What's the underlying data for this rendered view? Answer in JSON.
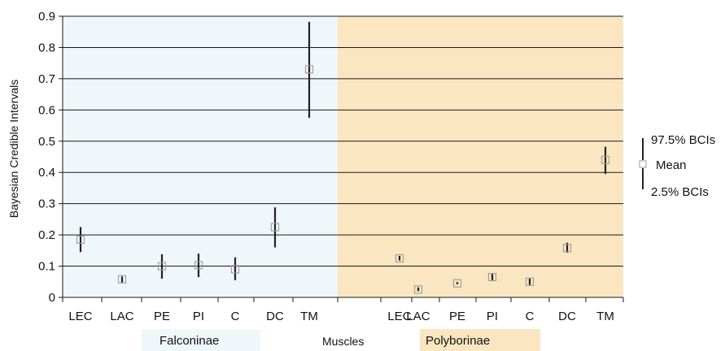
{
  "chart_data": {
    "type": "scatter",
    "ylabel": "Bayesian Credible Intervals",
    "xlabel": "Muscles",
    "ylim": [
      0,
      0.9
    ],
    "yticks": [
      "0",
      "0.1",
      "0.2",
      "0.3",
      "0.4",
      "0.5",
      "0.6",
      "0.7",
      "0.8",
      "0.9"
    ],
    "grid": true,
    "groups": [
      {
        "name": "Falconinae",
        "color": "#f0f7fa",
        "categories": [
          "LEC",
          "LAC",
          "PE",
          "PI",
          "C",
          "DC",
          "TM"
        ],
        "mean": [
          0.185,
          0.058,
          0.1,
          0.103,
          0.09,
          0.225,
          0.73
        ],
        "lower": [
          0.145,
          0.047,
          0.06,
          0.065,
          0.055,
          0.16,
          0.575
        ],
        "upper": [
          0.225,
          0.067,
          0.138,
          0.14,
          0.128,
          0.288,
          0.882
        ]
      },
      {
        "name": "Polyborinae",
        "color": "#fae6c1",
        "categories": [
          "LEC",
          "LAC",
          "PE",
          "PI",
          "C",
          "DC",
          "TM"
        ],
        "mean": [
          0.125,
          0.025,
          0.045,
          0.065,
          0.05,
          0.158,
          0.44
        ],
        "lower": [
          0.118,
          0.02,
          0.042,
          0.055,
          0.04,
          0.143,
          0.395
        ],
        "upper": [
          0.133,
          0.032,
          0.049,
          0.075,
          0.06,
          0.175,
          0.482
        ]
      }
    ],
    "legend": {
      "position": "right",
      "upper": "97.5% BCIs",
      "mean": "Mean",
      "lower": "2.5% BCIs"
    }
  }
}
